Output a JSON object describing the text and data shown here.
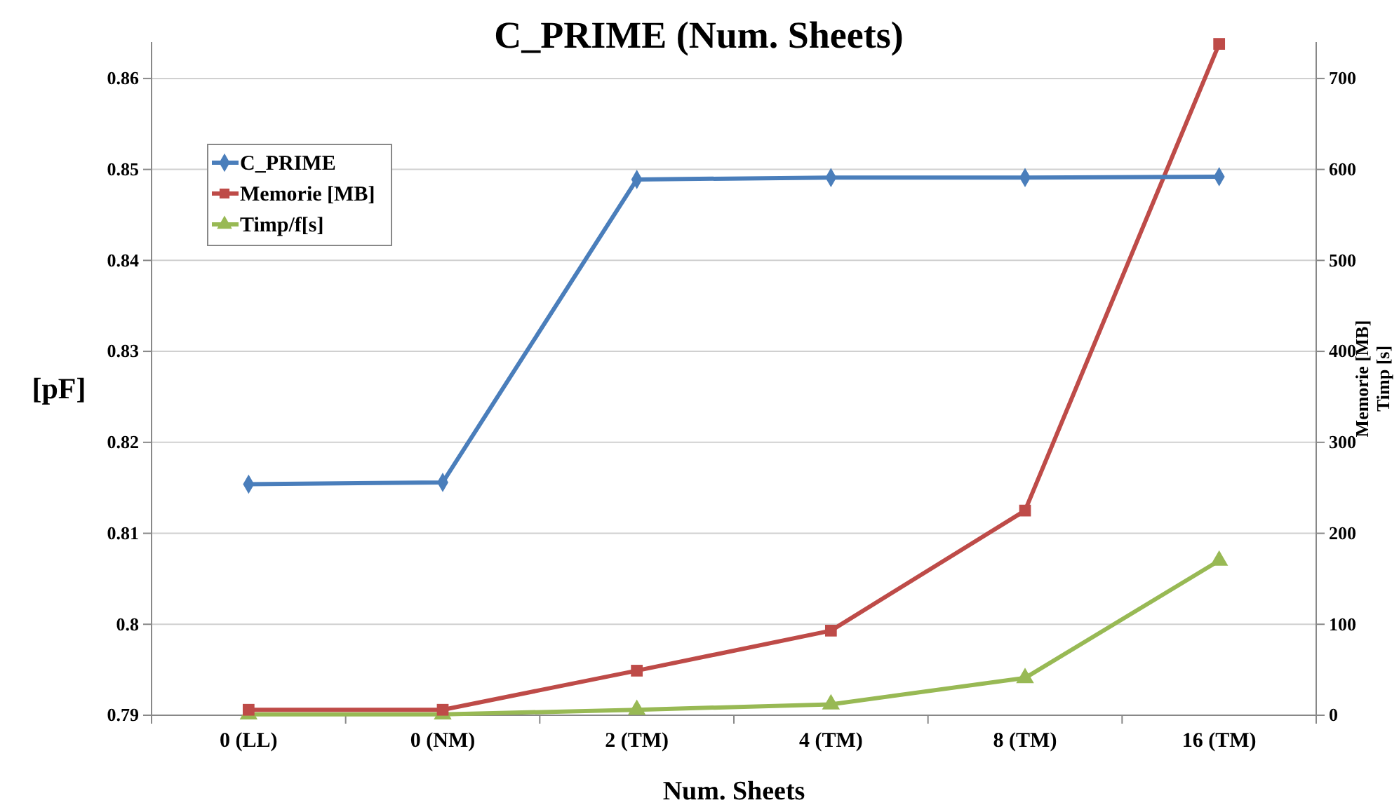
{
  "chart_data": {
    "type": "line",
    "title": "C_PRIME (Num. Sheets)",
    "xlabel": "Num. Sheets",
    "ylabel": "[pF]",
    "y2label": "Memorie [MB]\nTimp [s]",
    "categories": [
      "0 (LL)",
      "0 (NM)",
      "2 (TM)",
      "4 (TM)",
      "8 (TM)",
      "16 (TM)"
    ],
    "series": [
      {
        "name": "C_PRIME",
        "color": "#4a7ebb",
        "marker": "diamond",
        "values": [
          0.8154,
          0.8156,
          0.8489,
          0.8491,
          0.8491,
          0.8492
        ]
      },
      {
        "name": "Memorie [MB]",
        "color": "#be4b48",
        "marker": "square",
        "axis": "y2",
        "values": [
          6,
          6,
          49,
          93,
          225,
          738
        ]
      },
      {
        "name": "Timp/f[s]",
        "color": "#98b954",
        "marker": "triangle",
        "axis": "y2",
        "values": [
          1,
          1,
          6,
          12,
          41,
          170
        ]
      }
    ],
    "ylim": [
      0.79,
      0.864
    ],
    "yticks": [
      0.79,
      0.8,
      0.81,
      0.82,
      0.83,
      0.84,
      0.85,
      0.86
    ],
    "y2lim": [
      0,
      740
    ],
    "y2ticks": [
      0,
      100,
      200,
      300,
      400,
      500,
      600,
      700
    ],
    "grid": "y",
    "legend": "top left",
    "line_style": "solid"
  }
}
